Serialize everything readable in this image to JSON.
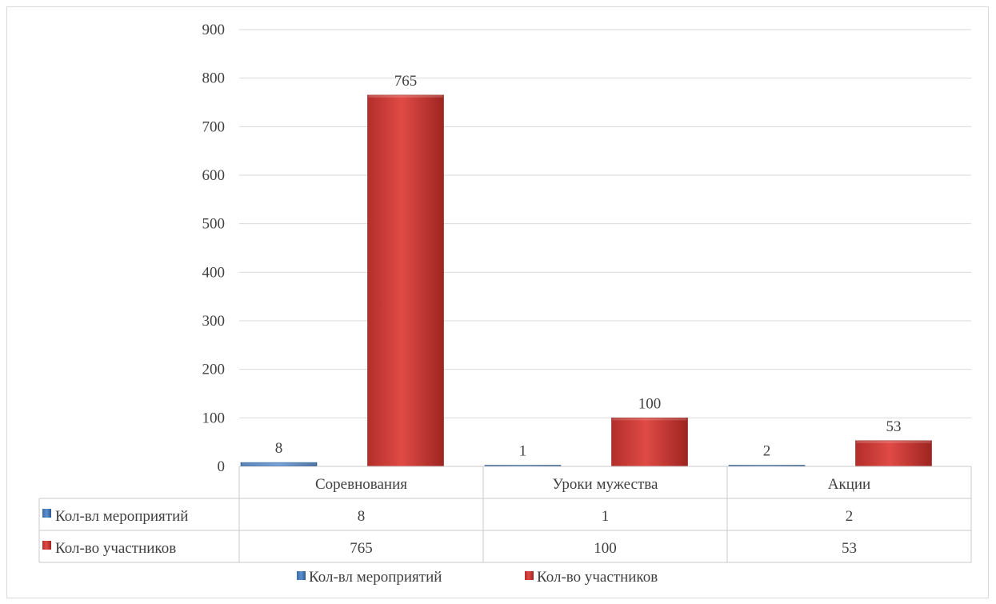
{
  "chart_data": {
    "type": "bar",
    "categories": [
      "Соревнования",
      "Уроки мужества",
      "Акции"
    ],
    "series": [
      {
        "name": "Кол-вл мероприятий",
        "values": [
          8,
          1,
          2
        ],
        "color": "#4f81bd"
      },
      {
        "name": "Кол-во участников",
        "values": [
          765,
          100,
          53
        ],
        "color": "#c0392b"
      }
    ],
    "ylim": [
      0,
      900
    ],
    "yticks": [
      0,
      100,
      200,
      300,
      400,
      500,
      600,
      700,
      800,
      900
    ],
    "grid": true,
    "legend_position": "bottom",
    "data_table": true,
    "title": "",
    "xlabel": "",
    "ylabel": ""
  }
}
